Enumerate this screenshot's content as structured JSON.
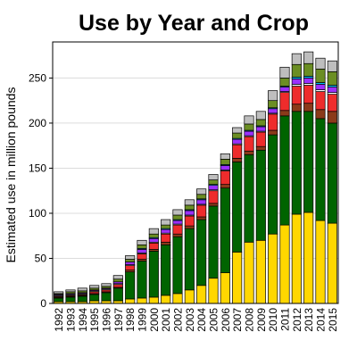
{
  "chart_data": {
    "type": "bar",
    "stacked": true,
    "title": "Use by Year and Crop",
    "xlabel": "",
    "ylabel": "Estimated use in million pounds",
    "ylim": [
      0,
      290
    ],
    "yticks": [
      0,
      50,
      100,
      150,
      200,
      250
    ],
    "grid": true,
    "legend": "none",
    "categories": [
      "1992",
      "1993",
      "1994",
      "1995",
      "1996",
      "1997",
      "1998",
      "1999",
      "2000",
      "2001",
      "2002",
      "2003",
      "2004",
      "2005",
      "2006",
      "2007",
      "2008",
      "2009",
      "2010",
      "2011",
      "2012",
      "2013",
      "2014",
      "2015"
    ],
    "series": [
      {
        "color": "#ffd700",
        "values": [
          2,
          2,
          2,
          3,
          3,
          3,
          5,
          6,
          7,
          9,
          11,
          15,
          20,
          28,
          34,
          57,
          68,
          70,
          77,
          87,
          99,
          101,
          92,
          89
        ]
      },
      {
        "color": "#006400",
        "values": [
          4,
          5,
          6,
          7,
          9,
          14,
          30,
          41,
          51,
          56,
          63,
          68,
          73,
          80,
          94,
          100,
          97,
          100,
          110,
          121,
          114,
          112,
          113,
          111
        ]
      },
      {
        "color": "#8b3a1a",
        "values": [
          1,
          1,
          1,
          1,
          1,
          1,
          2,
          2,
          2,
          3,
          3,
          3,
          3,
          3,
          4,
          4,
          4,
          4,
          5,
          6,
          8,
          9,
          10,
          13
        ]
      },
      {
        "color": "#ee2c2c",
        "values": [
          1,
          1,
          1,
          2,
          2,
          3,
          5,
          6,
          7,
          9,
          10,
          11,
          13,
          14,
          15,
          15,
          16,
          16,
          18,
          20,
          20,
          20,
          20,
          19
        ]
      },
      {
        "color": "#ffffff",
        "values": [
          1,
          1,
          1,
          1,
          1,
          1,
          1,
          1,
          1,
          1,
          1,
          1,
          1,
          1,
          1,
          1,
          1,
          1,
          1,
          1,
          2,
          2,
          2,
          2
        ]
      },
      {
        "color": "#9b30ff",
        "values": [
          1,
          1,
          1,
          1,
          1,
          2,
          3,
          4,
          4,
          4,
          4,
          5,
          5,
          5,
          5,
          5,
          5,
          5,
          5,
          5,
          6,
          6,
          6,
          6
        ]
      },
      {
        "color": "#00bfff",
        "values": [
          0,
          0,
          0,
          0,
          0,
          0,
          0,
          1,
          1,
          1,
          1,
          1,
          1,
          1,
          1,
          1,
          1,
          1,
          1,
          1,
          2,
          2,
          2,
          2
        ]
      },
      {
        "color": "#6b8e23",
        "values": [
          1,
          2,
          2,
          2,
          2,
          3,
          3,
          4,
          4,
          4,
          5,
          5,
          5,
          5,
          6,
          6,
          7,
          7,
          8,
          9,
          14,
          14,
          15,
          15
        ]
      },
      {
        "color": "#bebebe",
        "values": [
          2,
          2,
          3,
          3,
          3,
          4,
          4,
          5,
          6,
          6,
          6,
          6,
          6,
          6,
          6,
          6,
          9,
          9,
          11,
          12,
          12,
          13,
          12,
          12
        ]
      }
    ]
  }
}
